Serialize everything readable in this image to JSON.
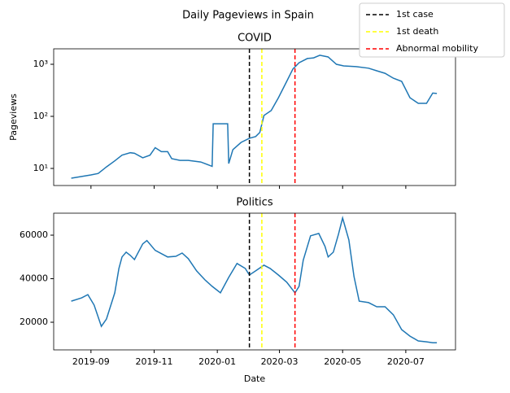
{
  "title": "Daily Pageviews in Spain",
  "chart_data": [
    {
      "type": "line",
      "title": "COVID",
      "ylabel": "Pageviews",
      "log": true,
      "legend": "upper right",
      "xlim": [
        "2019-07-27",
        "2020-08-18"
      ],
      "ylim": [
        4.7,
        1980
      ],
      "yticks": [
        {
          "value": 10,
          "label": "10¹"
        },
        {
          "value": 100,
          "label": "10²"
        },
        {
          "value": 1000,
          "label": "10³"
        }
      ],
      "x": [
        "2019-08-13",
        "2019-08-23",
        "2019-09-01",
        "2019-09-08",
        "2019-09-16",
        "2019-09-24",
        "2019-10-01",
        "2019-10-09",
        "2019-10-13",
        "2019-10-21",
        "2019-10-28",
        "2019-11-02",
        "2019-11-08",
        "2019-11-14",
        "2019-11-18",
        "2019-11-26",
        "2019-12-04",
        "2019-12-16",
        "2019-12-27",
        "2019-12-28",
        "2020-01-09",
        "2020-01-11",
        "2020-01-12",
        "2020-01-16",
        "2020-01-24",
        "2020-02-01",
        "2020-02-07",
        "2020-02-11",
        "2020-02-15",
        "2020-02-22",
        "2020-02-29",
        "2020-03-08",
        "2020-03-14",
        "2020-03-20",
        "2020-03-28",
        "2020-04-03",
        "2020-04-09",
        "2020-04-17",
        "2020-04-25",
        "2020-05-02",
        "2020-05-14",
        "2020-05-26",
        "2020-06-03",
        "2020-06-11",
        "2020-06-19",
        "2020-06-27",
        "2020-07-05",
        "2020-07-13",
        "2020-07-21",
        "2020-07-27",
        "2020-07-31"
      ],
      "series": [
        {
          "color": "#1f77b4",
          "values": [
            6.5,
            7,
            7.5,
            8,
            10.7,
            14,
            18,
            20,
            19.5,
            16,
            18,
            25,
            21,
            21,
            15.4,
            14.3,
            14.3,
            13.3,
            11,
            72,
            72,
            72,
            12.4,
            23,
            31.6,
            38,
            41,
            49,
            104,
            129,
            228,
            470,
            810,
            1070,
            1290,
            1330,
            1490,
            1380,
            1000,
            930,
            900,
            840,
            750,
            670,
            540,
            470,
            228,
            178,
            178,
            280,
            275
          ]
        }
      ],
      "vlines": [
        {
          "name": "1st case",
          "color": "#000000",
          "x": "2020-02-01"
        },
        {
          "name": "1st death",
          "color": "#ffff00",
          "x": "2020-02-13"
        },
        {
          "name": "Abnormal mobility",
          "color": "#ff0000",
          "x": "2020-03-16"
        }
      ]
    },
    {
      "type": "line",
      "title": "Politics",
      "xlabel": "Date",
      "log": false,
      "xlim": [
        "2019-07-27",
        "2020-08-18"
      ],
      "xticks": [
        "2019-09",
        "2019-11",
        "2020-01",
        "2020-03",
        "2020-05",
        "2020-07"
      ],
      "ylim": [
        7300,
        70100
      ],
      "yticks": [
        20000,
        40000,
        60000
      ],
      "x": [
        "2019-08-13",
        "2019-08-23",
        "2019-08-29",
        "2019-09-04",
        "2019-09-11",
        "2019-09-16",
        "2019-09-24",
        "2019-09-28",
        "2019-10-01",
        "2019-10-05",
        "2019-10-09",
        "2019-10-13",
        "2019-10-21",
        "2019-10-25",
        "2019-11-02",
        "2019-11-14",
        "2019-11-22",
        "2019-11-28",
        "2019-12-04",
        "2019-12-12",
        "2019-12-20",
        "2019-12-27",
        "2019-12-31",
        "2020-01-04",
        "2020-01-12",
        "2020-01-20",
        "2020-01-28",
        "2020-02-01",
        "2020-02-07",
        "2020-02-15",
        "2020-02-21",
        "2020-02-29",
        "2020-03-08",
        "2020-03-16",
        "2020-03-20",
        "2020-03-24",
        "2020-03-31",
        "2020-04-08",
        "2020-04-14",
        "2020-04-17",
        "2020-04-22",
        "2020-04-27",
        "2020-05-01",
        "2020-05-07",
        "2020-05-12",
        "2020-05-17",
        "2020-05-26",
        "2020-06-03",
        "2020-06-11",
        "2020-06-19",
        "2020-06-27",
        "2020-07-05",
        "2020-07-13",
        "2020-07-21",
        "2020-07-27",
        "2020-07-31"
      ],
      "series": [
        {
          "color": "#1f77b4",
          "values": [
            29700,
            31200,
            32700,
            27900,
            18100,
            21500,
            33500,
            44700,
            50000,
            52200,
            50700,
            48800,
            56000,
            57500,
            53000,
            50000,
            50300,
            51800,
            49200,
            43600,
            39500,
            36500,
            35000,
            33500,
            40600,
            47000,
            44700,
            41700,
            43600,
            46200,
            44700,
            41700,
            38400,
            33500,
            36500,
            48500,
            59700,
            60800,
            54800,
            50000,
            52200,
            60400,
            67900,
            57800,
            41000,
            29700,
            29000,
            27100,
            27100,
            23400,
            16600,
            13600,
            11400,
            11000,
            10600,
            10600
          ]
        }
      ],
      "vlines": [
        {
          "name": "1st case",
          "color": "#000000",
          "x": "2020-02-01"
        },
        {
          "name": "1st death",
          "color": "#ffff00",
          "x": "2020-02-13"
        },
        {
          "name": "Abnormal mobility",
          "color": "#ff0000",
          "x": "2020-03-16"
        }
      ]
    }
  ]
}
